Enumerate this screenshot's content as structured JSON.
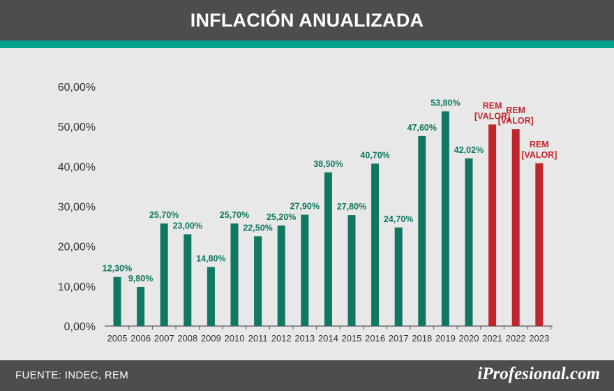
{
  "header": {
    "title": "INFLACIÓN ANUALIZADA"
  },
  "footer": {
    "source": "FUENTE: INDEC, REM",
    "brand": "iProfesional.com"
  },
  "colors": {
    "actual": "#0f7762",
    "forecast": "#c0272d",
    "accent": "#00a08a",
    "header": "#4d4d4d"
  },
  "chart_data": {
    "type": "bar",
    "ylim": [
      0,
      60
    ],
    "yticks": [
      "0,00%",
      "10,00%",
      "20,00%",
      "30,00%",
      "40,00%",
      "50,00%",
      "60,00%"
    ],
    "ytick_values": [
      0,
      10,
      20,
      30,
      40,
      50,
      60
    ],
    "categories": [
      "2005",
      "2006",
      "2007",
      "2008",
      "2009",
      "2010",
      "2011",
      "2012",
      "2013",
      "2014",
      "2015",
      "2016",
      "2017",
      "2018",
      "2019",
      "2020",
      "2021",
      "2022",
      "2023"
    ],
    "values": [
      12.3,
      9.8,
      25.7,
      23.0,
      14.8,
      25.7,
      22.5,
      25.2,
      27.9,
      38.5,
      27.8,
      40.7,
      24.7,
      47.6,
      53.8,
      42.02,
      50.5,
      49.3,
      40.8
    ],
    "labels": [
      "12,30%",
      "9,80%",
      "25,70%",
      "23,00%",
      "14,80%",
      "25,70%",
      "22,50%",
      "25,20%",
      "27,90%",
      "38,50%",
      "27,80%",
      "40,70%",
      "24,70%",
      "47,60%",
      "53,80%",
      "42,02%",
      "REM\n[VALOR]",
      "REM\n[VALOR]",
      "REM\n[VALOR]"
    ],
    "kind": [
      "actual",
      "actual",
      "actual",
      "actual",
      "actual",
      "actual",
      "actual",
      "actual",
      "actual",
      "actual",
      "actual",
      "actual",
      "actual",
      "actual",
      "actual",
      "actual",
      "forecast",
      "forecast",
      "forecast"
    ],
    "grid": false,
    "legend": "none"
  }
}
